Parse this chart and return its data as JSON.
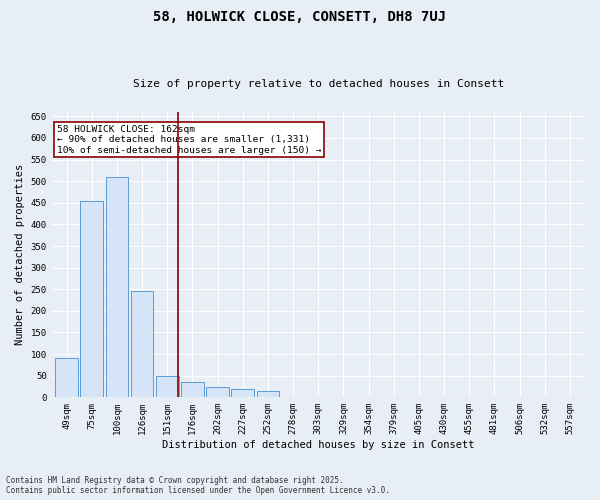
{
  "title": "58, HOLWICK CLOSE, CONSETT, DH8 7UJ",
  "subtitle": "Size of property relative to detached houses in Consett",
  "xlabel": "Distribution of detached houses by size in Consett",
  "ylabel": "Number of detached properties",
  "footer_line1": "Contains HM Land Registry data © Crown copyright and database right 2025.",
  "footer_line2": "Contains public sector information licensed under the Open Government Licence v3.0.",
  "annotation_title": "58 HOLWICK CLOSE: 162sqm",
  "annotation_line1": "← 90% of detached houses are smaller (1,331)",
  "annotation_line2": "10% of semi-detached houses are larger (150) →",
  "bar_edge_color": "#5b9bd5",
  "bar_fill_color": "#d6e4f7",
  "vline_color": "#8b0000",
  "annotation_box_color": "#8b0000",
  "bg_color": "#e8eef5",
  "plot_bg_color": "#e8eef5",
  "grid_color": "#ffffff",
  "categories": [
    "49sqm",
    "75sqm",
    "100sqm",
    "126sqm",
    "151sqm",
    "176sqm",
    "202sqm",
    "227sqm",
    "252sqm",
    "278sqm",
    "303sqm",
    "329sqm",
    "354sqm",
    "379sqm",
    "405sqm",
    "430sqm",
    "455sqm",
    "481sqm",
    "506sqm",
    "532sqm",
    "557sqm"
  ],
  "values": [
    90,
    455,
    510,
    245,
    50,
    35,
    25,
    20,
    15,
    1,
    1,
    0,
    0,
    0,
    0,
    0,
    0,
    1,
    0,
    1,
    0
  ],
  "vline_x": 4.44,
  "ylim": [
    0,
    660
  ],
  "yticks": [
    0,
    50,
    100,
    150,
    200,
    250,
    300,
    350,
    400,
    450,
    500,
    550,
    600,
    650
  ],
  "title_fontsize": 10,
  "subtitle_fontsize": 8,
  "ylabel_fontsize": 7.5,
  "xlabel_fontsize": 7.5,
  "tick_fontsize": 6.5,
  "annotation_fontsize": 6.8,
  "footer_fontsize": 5.5
}
